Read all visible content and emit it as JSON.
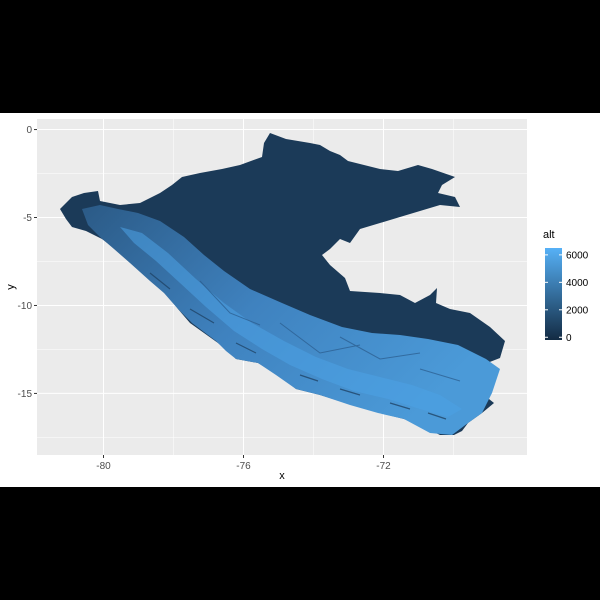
{
  "chart_data": {
    "type": "heatmap",
    "title": "",
    "xlabel": "x",
    "ylabel": "y",
    "x_ticks": [
      -80,
      -76,
      -72
    ],
    "y_ticks": [
      0,
      -5,
      -10,
      -15
    ],
    "xlim": [
      -81.9,
      -67.9
    ],
    "ylim": [
      -18.5,
      0.6
    ],
    "grid": true,
    "legend": {
      "title": "alt",
      "placement": "right",
      "ticks": [
        0,
        2000,
        4000,
        6000
      ],
      "range": [
        -200,
        6500
      ],
      "color_low": "#132B43",
      "color_high": "#56B1F7"
    }
  },
  "colors": {
    "panel_bg": "#EBEBEB",
    "grid": "#FFFFFF",
    "frame": "#000000",
    "surround": "#FFFFFF"
  }
}
